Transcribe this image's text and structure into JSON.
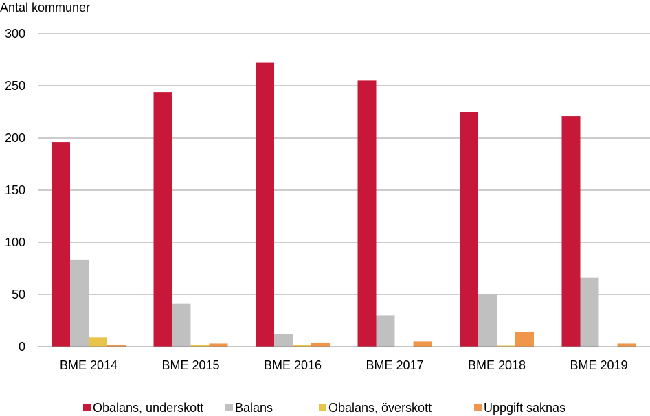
{
  "chart_data": {
    "type": "bar",
    "ylabel": "Antal kommuner",
    "ylim": [
      0,
      300
    ],
    "yticks": [
      0,
      50,
      100,
      150,
      200,
      250,
      300
    ],
    "grid": true,
    "legend_position": "bottom",
    "categories": [
      "BME 2014",
      "BME 2015",
      "BME 2016",
      "BME 2017",
      "BME 2018",
      "BME 2019"
    ],
    "series": [
      {
        "name": "Obalans, underskott",
        "color": "#c8183a",
        "values": [
          196,
          244,
          272,
          255,
          225,
          221
        ]
      },
      {
        "name": "Balans",
        "color": "#c0c0c0",
        "values": [
          83,
          41,
          12,
          30,
          50,
          66
        ]
      },
      {
        "name": "Obalans, överskott",
        "color": "#e8c44a",
        "values": [
          9,
          2,
          2,
          0,
          1,
          0
        ]
      },
      {
        "name": "Uppgift saknas",
        "color": "#f0964a",
        "values": [
          2,
          3,
          4,
          5,
          14,
          3
        ]
      }
    ]
  }
}
